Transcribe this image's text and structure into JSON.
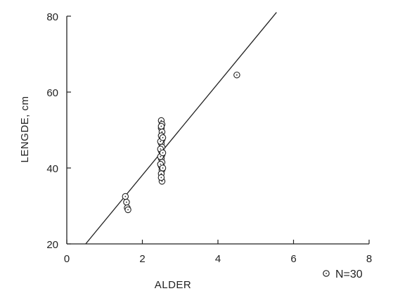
{
  "chart_data": {
    "type": "scatter",
    "xlabel": "ALDER",
    "ylabel": "LENGDE,  cm",
    "xlim": [
      0,
      8
    ],
    "ylim": [
      20,
      80
    ],
    "xticks": [
      "0",
      "2",
      "4",
      "6",
      "8"
    ],
    "yticks": [
      "20",
      "40",
      "60",
      "80"
    ],
    "x_tick_values": [
      0,
      2,
      4,
      6,
      8
    ],
    "y_tick_values": [
      20,
      40,
      60,
      80
    ],
    "grid": false,
    "legend": {
      "text": "N=30",
      "placement": "bottom-right"
    },
    "points": [
      {
        "x": 1.55,
        "y": 32.5
      },
      {
        "x": 1.58,
        "y": 31.0
      },
      {
        "x": 1.6,
        "y": 29.5
      },
      {
        "x": 1.62,
        "y": 29.0
      },
      {
        "x": 2.5,
        "y": 52.5
      },
      {
        "x": 2.52,
        "y": 51.5
      },
      {
        "x": 2.5,
        "y": 50.5
      },
      {
        "x": 2.52,
        "y": 49.5
      },
      {
        "x": 2.5,
        "y": 48.5
      },
      {
        "x": 2.52,
        "y": 47.5
      },
      {
        "x": 2.5,
        "y": 46.5
      },
      {
        "x": 2.52,
        "y": 45.5
      },
      {
        "x": 2.5,
        "y": 44.5
      },
      {
        "x": 2.52,
        "y": 43.5
      },
      {
        "x": 2.5,
        "y": 42.5
      },
      {
        "x": 2.52,
        "y": 41.5
      },
      {
        "x": 2.5,
        "y": 40.5
      },
      {
        "x": 2.52,
        "y": 39.5
      },
      {
        "x": 2.5,
        "y": 38.5
      },
      {
        "x": 2.52,
        "y": 36.5
      },
      {
        "x": 2.48,
        "y": 47.0
      },
      {
        "x": 2.48,
        "y": 45.0
      },
      {
        "x": 2.48,
        "y": 43.0
      },
      {
        "x": 2.48,
        "y": 41.0
      },
      {
        "x": 2.54,
        "y": 44.0
      },
      {
        "x": 2.54,
        "y": 48.0
      },
      {
        "x": 2.54,
        "y": 40.0
      },
      {
        "x": 2.5,
        "y": 51.0
      },
      {
        "x": 2.5,
        "y": 37.5
      },
      {
        "x": 4.5,
        "y": 64.5
      }
    ],
    "fit_line": {
      "x": [
        0.5,
        5.55
      ],
      "y": [
        20,
        81
      ]
    }
  }
}
